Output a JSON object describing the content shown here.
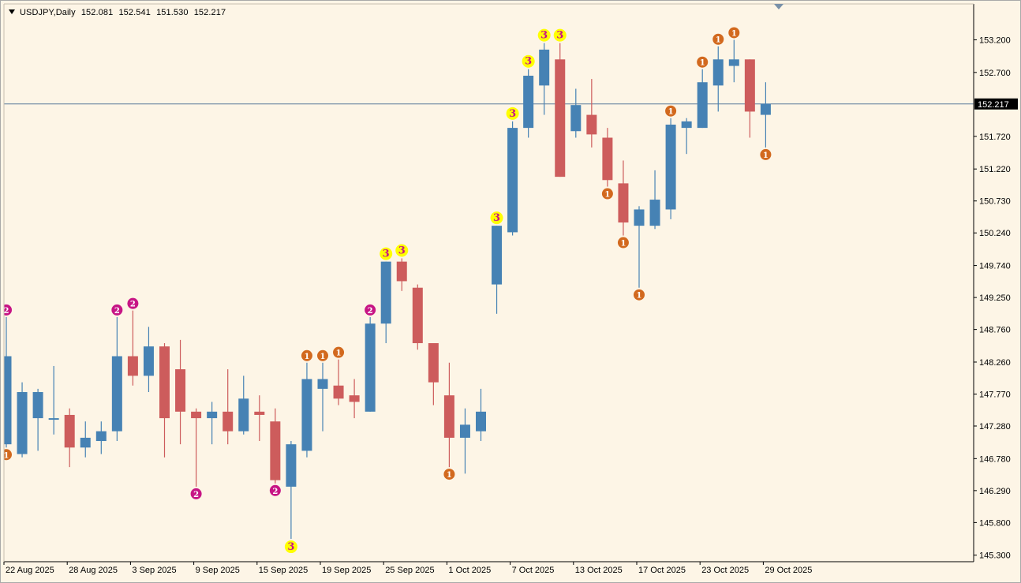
{
  "chart_data": {
    "type": "candlestick",
    "symbol": "USDJPY,Daily",
    "ohlc_header": [
      "152.081",
      "152.541",
      "151.530",
      "152.217"
    ],
    "current_price": 152.217,
    "current_price_label": "152.217",
    "ylim": [
      145.2,
      153.75
    ],
    "y_ticks": [
      {
        "value": 153.2,
        "label": "153.200"
      },
      {
        "value": 152.7,
        "label": "152.700"
      },
      {
        "value": 151.72,
        "label": "151.720"
      },
      {
        "value": 151.22,
        "label": "151.220"
      },
      {
        "value": 150.73,
        "label": "150.730"
      },
      {
        "value": 150.24,
        "label": "150.240"
      },
      {
        "value": 149.74,
        "label": "149.740"
      },
      {
        "value": 149.25,
        "label": "149.250"
      },
      {
        "value": 148.76,
        "label": "148.760"
      },
      {
        "value": 148.26,
        "label": "148.260"
      },
      {
        "value": 147.77,
        "label": "147.770"
      },
      {
        "value": 147.28,
        "label": "147.280"
      },
      {
        "value": 146.78,
        "label": "146.780"
      },
      {
        "value": 146.29,
        "label": "146.290"
      },
      {
        "value": 145.8,
        "label": "145.800"
      },
      {
        "value": 145.3,
        "label": "145.300"
      }
    ],
    "x_ticks": [
      {
        "index": 0,
        "label": "22 Aug 2025"
      },
      {
        "index": 4,
        "label": "28 Aug 2025"
      },
      {
        "index": 8,
        "label": "3 Sep 2025"
      },
      {
        "index": 12,
        "label": "9 Sep 2025"
      },
      {
        "index": 16,
        "label": "15 Sep 2025"
      },
      {
        "index": 20,
        "label": "19 Sep 2025"
      },
      {
        "index": 24,
        "label": "25 Sep 2025"
      },
      {
        "index": 28,
        "label": "1 Oct 2025"
      },
      {
        "index": 32,
        "label": "7 Oct 2025"
      },
      {
        "index": 36,
        "label": "13 Oct 2025"
      },
      {
        "index": 40,
        "label": "17 Oct 2025"
      },
      {
        "index": 44,
        "label": "23 Oct 2025"
      },
      {
        "index": 48,
        "label": "29 Oct 2025"
      }
    ],
    "colors": {
      "bull": "#4682b4",
      "bear": "#cd5c5c",
      "background": "#fdf5e6",
      "grid_line": "#5a7a9a",
      "marker_1": "#d2691e",
      "marker_2": "#c71585",
      "marker_3_fill": "#ffff00",
      "marker_3_text": "#c71585"
    },
    "candles": [
      {
        "o": 147.0,
        "h": 148.95,
        "l": 146.95,
        "c": 148.35
      },
      {
        "o": 146.85,
        "h": 147.95,
        "l": 146.8,
        "c": 147.8
      },
      {
        "o": 147.4,
        "h": 147.85,
        "l": 146.9,
        "c": 147.8
      },
      {
        "o": 147.4,
        "h": 148.2,
        "l": 147.15,
        "c": 147.4
      },
      {
        "o": 147.45,
        "h": 147.55,
        "l": 146.65,
        "c": 146.95
      },
      {
        "o": 146.95,
        "h": 147.35,
        "l": 146.8,
        "c": 147.1
      },
      {
        "o": 147.05,
        "h": 147.35,
        "l": 146.85,
        "c": 147.2
      },
      {
        "o": 147.2,
        "h": 148.95,
        "l": 147.05,
        "c": 148.35
      },
      {
        "o": 148.35,
        "h": 149.05,
        "l": 147.9,
        "c": 148.05
      },
      {
        "o": 148.05,
        "h": 148.8,
        "l": 147.8,
        "c": 148.5
      },
      {
        "o": 148.5,
        "h": 148.55,
        "l": 146.8,
        "c": 147.4
      },
      {
        "o": 148.15,
        "h": 148.6,
        "l": 147.0,
        "c": 147.5
      },
      {
        "o": 147.5,
        "h": 147.55,
        "l": 146.35,
        "c": 147.4
      },
      {
        "o": 147.4,
        "h": 147.65,
        "l": 147.0,
        "c": 147.5
      },
      {
        "o": 147.5,
        "h": 148.15,
        "l": 147.0,
        "c": 147.2
      },
      {
        "o": 147.2,
        "h": 148.05,
        "l": 147.15,
        "c": 147.7
      },
      {
        "o": 147.5,
        "h": 147.75,
        "l": 147.05,
        "c": 147.45
      },
      {
        "o": 147.35,
        "h": 147.55,
        "l": 146.4,
        "c": 146.45
      },
      {
        "o": 146.35,
        "h": 147.05,
        "l": 145.55,
        "c": 147.0
      },
      {
        "o": 146.9,
        "h": 148.25,
        "l": 146.8,
        "c": 148.0
      },
      {
        "o": 147.85,
        "h": 148.25,
        "l": 147.2,
        "c": 148.0
      },
      {
        "o": 147.9,
        "h": 148.3,
        "l": 147.6,
        "c": 147.7
      },
      {
        "o": 147.75,
        "h": 148.0,
        "l": 147.4,
        "c": 147.65
      },
      {
        "o": 147.5,
        "h": 148.95,
        "l": 147.5,
        "c": 148.85
      },
      {
        "o": 148.85,
        "h": 149.8,
        "l": 148.55,
        "c": 149.8
      },
      {
        "o": 149.8,
        "h": 149.85,
        "l": 149.35,
        "c": 149.5
      },
      {
        "o": 149.4,
        "h": 149.45,
        "l": 148.45,
        "c": 148.55
      },
      {
        "o": 148.55,
        "h": 148.55,
        "l": 147.6,
        "c": 147.95
      },
      {
        "o": 147.75,
        "h": 148.25,
        "l": 146.65,
        "c": 147.1
      },
      {
        "o": 147.1,
        "h": 147.55,
        "l": 146.55,
        "c": 147.3
      },
      {
        "o": 147.2,
        "h": 147.85,
        "l": 147.05,
        "c": 147.5
      },
      {
        "o": 149.45,
        "h": 150.35,
        "l": 149.0,
        "c": 150.35
      },
      {
        "o": 150.25,
        "h": 151.95,
        "l": 150.2,
        "c": 151.85
      },
      {
        "o": 151.85,
        "h": 152.75,
        "l": 151.7,
        "c": 152.65
      },
      {
        "o": 152.5,
        "h": 153.15,
        "l": 152.05,
        "c": 153.05
      },
      {
        "o": 152.9,
        "h": 153.15,
        "l": 151.1,
        "c": 151.1
      },
      {
        "o": 151.8,
        "h": 152.45,
        "l": 151.7,
        "c": 152.2
      },
      {
        "o": 152.05,
        "h": 152.6,
        "l": 151.55,
        "c": 151.75
      },
      {
        "o": 151.7,
        "h": 151.85,
        "l": 150.95,
        "c": 151.05
      },
      {
        "o": 151.0,
        "h": 151.35,
        "l": 150.2,
        "c": 150.4
      },
      {
        "o": 150.35,
        "h": 150.65,
        "l": 149.4,
        "c": 150.6
      },
      {
        "o": 150.35,
        "h": 151.2,
        "l": 150.3,
        "c": 150.75
      },
      {
        "o": 150.6,
        "h": 152.0,
        "l": 150.45,
        "c": 151.9
      },
      {
        "o": 151.85,
        "h": 152.0,
        "l": 151.45,
        "c": 151.95
      },
      {
        "o": 151.85,
        "h": 152.75,
        "l": 151.85,
        "c": 152.55
      },
      {
        "o": 152.5,
        "h": 153.1,
        "l": 152.1,
        "c": 152.9
      },
      {
        "o": 152.8,
        "h": 153.2,
        "l": 152.55,
        "c": 152.9
      },
      {
        "o": 152.9,
        "h": 152.9,
        "l": 151.7,
        "c": 152.1
      },
      {
        "o": 152.05,
        "h": 152.55,
        "l": 151.55,
        "c": 152.22
      }
    ],
    "markers": [
      {
        "i": 0,
        "side": "high",
        "label": "2",
        "kind": "2"
      },
      {
        "i": 0,
        "side": "low",
        "label": "1",
        "kind": "1"
      },
      {
        "i": 7,
        "side": "high",
        "label": "2",
        "kind": "2"
      },
      {
        "i": 8,
        "side": "high",
        "label": "2",
        "kind": "2"
      },
      {
        "i": 12,
        "side": "low",
        "label": "2",
        "kind": "2"
      },
      {
        "i": 17,
        "side": "low",
        "label": "2",
        "kind": "2"
      },
      {
        "i": 18,
        "side": "low",
        "label": "3",
        "kind": "3"
      },
      {
        "i": 19,
        "side": "high",
        "label": "1",
        "kind": "1"
      },
      {
        "i": 20,
        "side": "high",
        "label": "1",
        "kind": "1"
      },
      {
        "i": 21,
        "side": "high",
        "label": "1",
        "kind": "1"
      },
      {
        "i": 23,
        "side": "high",
        "label": "2",
        "kind": "2"
      },
      {
        "i": 24,
        "side": "high",
        "label": "3",
        "kind": "3"
      },
      {
        "i": 25,
        "side": "high",
        "label": "3",
        "kind": "3"
      },
      {
        "i": 28,
        "side": "low",
        "label": "1",
        "kind": "1"
      },
      {
        "i": 31,
        "side": "high",
        "label": "3",
        "kind": "3"
      },
      {
        "i": 32,
        "side": "high",
        "label": "3",
        "kind": "3"
      },
      {
        "i": 33,
        "side": "high",
        "label": "3",
        "kind": "3"
      },
      {
        "i": 34,
        "side": "high",
        "label": "3",
        "kind": "3"
      },
      {
        "i": 35,
        "side": "high",
        "label": "3",
        "kind": "3"
      },
      {
        "i": 38,
        "side": "low",
        "label": "1",
        "kind": "1"
      },
      {
        "i": 39,
        "side": "low",
        "label": "1",
        "kind": "1"
      },
      {
        "i": 40,
        "side": "low",
        "label": "1",
        "kind": "1"
      },
      {
        "i": 42,
        "side": "high",
        "label": "1",
        "kind": "1"
      },
      {
        "i": 44,
        "side": "high",
        "label": "1",
        "kind": "1"
      },
      {
        "i": 45,
        "side": "high",
        "label": "1",
        "kind": "1"
      },
      {
        "i": 46,
        "side": "high",
        "label": "1",
        "kind": "1"
      },
      {
        "i": 48,
        "side": "low",
        "label": "1",
        "kind": "1"
      }
    ]
  }
}
